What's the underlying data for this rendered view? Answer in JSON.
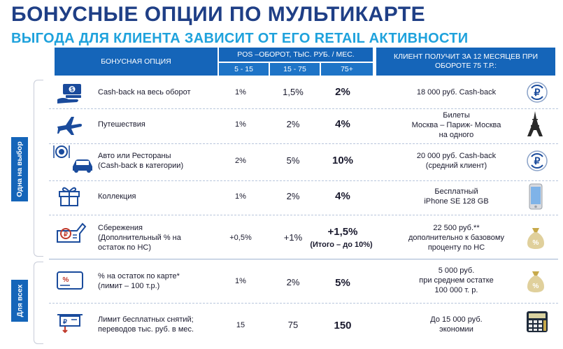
{
  "title": "БОНУСНЫЕ ОПЦИИ ПО МУЛЬТИКАРТЕ",
  "subtitle": "ВЫГОДА ДЛЯ КЛИЕНТА ЗАВИСИТ ОТ ЕГО  RETAIL АКТИВНОСТИ",
  "headers": {
    "option": "БОНУСНАЯ ОПЦИЯ",
    "pos": "POS –ОБОРОТ, ТЫС. РУБ. / МЕС.",
    "range1": "5 - 15",
    "range2": "15 - 75",
    "range3": "75+",
    "result": "КЛИЕНТ ПОЛУЧИТ ЗА 12 МЕСЯЦЕВ ПРИ ОБОРОТЕ 75 Т.Р.:"
  },
  "groups": {
    "choice": "Одна на выбор",
    "all": "Для всех"
  },
  "rows": [
    {
      "option": "Cash-back на  весь оборот",
      "v1": "1%",
      "v2": "1,5%",
      "v3": "2%",
      "result": "18 000 руб. Cash-back",
      "left_icon": "money-hand-icon",
      "right_icon": "ruble-refresh-icon"
    },
    {
      "option": "Путешествия",
      "v1": "1%",
      "v2": "2%",
      "v3": "4%",
      "result": "Билеты\nМосква – Париж- Москва\nна одного",
      "left_icon": "airplane-icon",
      "right_icon": "eiffel-tower-icon"
    },
    {
      "option": "Авто или Рестораны\n(Cash-back  в категории)",
      "v1": "2%",
      "v2": "5%",
      "v3": "10%",
      "result": "20 000 руб. Cash-back\n(средний клиент)",
      "left_icon": "restaurant-car-icon",
      "right_icon": "ruble-refresh-icon"
    },
    {
      "option": "Коллекция",
      "v1": "1%",
      "v2": "2%",
      "v3": "4%",
      "result": "Бесплатный\niPhone SE 128 GB",
      "left_icon": "gift-icon",
      "right_icon": "smartphone-icon"
    },
    {
      "option": "Сбережения\n(Дополнительный % на\nостаток по НС)",
      "v1": "+0,5%",
      "v2": "+1%",
      "v3": "+1,5%",
      "v3_note": "(Итого – до 10%)",
      "result": "22 500 руб.**\nдополнительно к базовому\nпроценту по НС",
      "left_icon": "savings-icon",
      "right_icon": "money-bag-icon"
    },
    {
      "option": "% на остаток по карте*\n(лимит – 100 т.р.)",
      "v1": "1%",
      "v2": "2%",
      "v3": "5%",
      "result": "5 000 руб.\nпри среднем остатке\n100 000 т. р.",
      "left_icon": "card-percent-icon",
      "right_icon": "money-bag-icon"
    },
    {
      "option": "Лимит бесплатных снятий;\nпереводов тыс. руб. в мес.",
      "v1": "15",
      "v2": "75",
      "v3": "150",
      "result": "До 15 000 руб.\nэкономии",
      "left_icon": "cash-withdrawal-icon",
      "right_icon": "calculator-icon"
    }
  ],
  "colors": {
    "title": "#1f3f86",
    "subtitle": "#1fa2dc",
    "header_bg": "#1565b9",
    "icon_blue": "#1a4b9c",
    "icon_gold": "#c7a94a"
  }
}
